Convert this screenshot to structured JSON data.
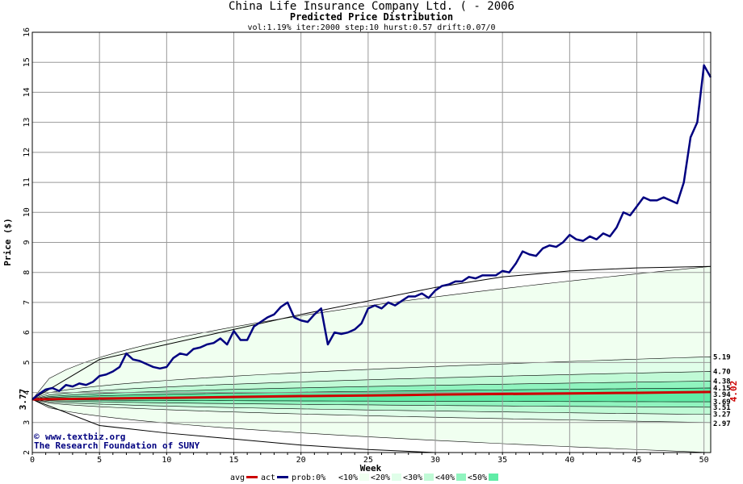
{
  "header": {
    "title": "China Life Insurance Company Ltd. ( - 2006",
    "subtitle": "Predicted Price Distribution",
    "params": "vol:1.19% iter:2000 step:10 hurst:0.57 drift:0.07/0"
  },
  "watermark": {
    "line1": "www.textbiz.org",
    "line2": "The Research Foundation of SUNY",
    "copyright": "©"
  },
  "chart_data": {
    "type": "line",
    "xlabel": "Week",
    "ylabel": "Price ($)",
    "xlim": [
      0,
      50.5
    ],
    "ylim": [
      2,
      16
    ],
    "xticks": [
      0,
      5,
      10,
      15,
      20,
      25,
      30,
      35,
      40,
      45,
      50
    ],
    "yticks": [
      2,
      3,
      4,
      5,
      6,
      7,
      8,
      9,
      10,
      11,
      12,
      13,
      14,
      15,
      16
    ],
    "grid": true,
    "start_value": "3.77",
    "start_price": 3.77,
    "end_value": "4.02",
    "end_price": 4.02,
    "percentile_labels": [
      "5.19",
      "4.70",
      "4.38",
      "4.15",
      "3.94",
      "3.69",
      "3.51",
      "3.27",
      "2.97"
    ],
    "bands": [
      {
        "name": "<10%",
        "upper": 8.2,
        "lower": 2.0,
        "color": "#f0fff0"
      },
      {
        "name": "<20%",
        "upper": 5.19,
        "lower": 3.0,
        "color": "#e0fee9"
      },
      {
        "name": "<30%",
        "upper": 4.7,
        "lower": 3.27,
        "color": "#c0fad6"
      },
      {
        "name": "<40%",
        "upper": 4.38,
        "lower": 3.51,
        "color": "#90f4bf"
      },
      {
        "name": "<50%",
        "upper": 4.15,
        "lower": 3.69,
        "color": "#60eca6"
      }
    ],
    "avg_series": {
      "name": "avg",
      "color": "#cc0000",
      "x": [
        0,
        5,
        10,
        15,
        20,
        25,
        30,
        35,
        40,
        45,
        50.5
      ],
      "y": [
        3.77,
        3.8,
        3.82,
        3.85,
        3.88,
        3.9,
        3.93,
        3.95,
        3.97,
        3.99,
        4.02
      ]
    },
    "act_series": {
      "name": "act",
      "color": "#000080",
      "x": [
        0,
        0.5,
        1,
        1.5,
        2,
        2.5,
        3,
        3.5,
        4,
        4.5,
        5,
        5.5,
        6,
        6.5,
        7,
        7.5,
        8,
        8.5,
        9,
        9.5,
        10,
        10.5,
        11,
        11.5,
        12,
        12.5,
        13,
        13.5,
        14,
        14.5,
        15,
        15.5,
        16,
        16.5,
        17,
        17.5,
        18,
        18.5,
        19,
        19.5,
        20,
        20.5,
        21,
        21.5,
        22,
        22.5,
        23,
        23.5,
        24,
        24.5,
        25,
        25.5,
        26,
        26.5,
        27,
        27.5,
        28,
        28.5,
        29,
        29.5,
        30,
        30.5,
        31,
        31.5,
        32,
        32.5,
        33,
        33.5,
        34,
        34.5,
        35,
        35.5,
        36,
        36.5,
        37,
        37.5,
        38,
        38.5,
        39,
        39.5,
        40,
        40.5,
        41,
        41.5,
        42,
        42.5,
        43,
        43.5,
        44,
        44.5,
        45,
        45.5,
        46,
        46.5,
        47,
        47.5,
        48,
        48.5,
        49,
        49.5,
        50,
        50.5
      ],
      "y": [
        3.77,
        3.95,
        4.1,
        4.15,
        4.05,
        4.25,
        4.2,
        4.3,
        4.25,
        4.35,
        4.55,
        4.6,
        4.7,
        4.85,
        5.3,
        5.1,
        5.05,
        4.95,
        4.85,
        4.8,
        4.85,
        5.15,
        5.3,
        5.25,
        5.45,
        5.5,
        5.6,
        5.65,
        5.8,
        5.6,
        6.05,
        5.75,
        5.75,
        6.2,
        6.35,
        6.5,
        6.6,
        6.85,
        7.0,
        6.5,
        6.4,
        6.35,
        6.6,
        6.8,
        5.6,
        6.0,
        5.95,
        6.0,
        6.1,
        6.3,
        6.8,
        6.9,
        6.8,
        7.0,
        6.9,
        7.05,
        7.2,
        7.2,
        7.3,
        7.15,
        7.4,
        7.55,
        7.6,
        7.7,
        7.7,
        7.85,
        7.8,
        7.9,
        7.9,
        7.9,
        8.05,
        8.0,
        8.3,
        8.7,
        8.6,
        8.55,
        8.8,
        8.9,
        8.85,
        9.0,
        9.25,
        9.1,
        9.05,
        9.2,
        9.1,
        9.3,
        9.2,
        9.5,
        10.0,
        9.9,
        10.2,
        10.5,
        10.4,
        10.4,
        10.5,
        10.4,
        10.3,
        11.0,
        12.5,
        13.0,
        14.9,
        14.5
      ]
    },
    "upper_envelope": {
      "x": [
        0,
        5,
        10,
        15,
        20,
        25,
        30,
        35,
        40,
        45,
        50.5
      ],
      "y": [
        3.77,
        5.1,
        5.6,
        6.1,
        6.6,
        7.05,
        7.5,
        7.85,
        8.05,
        8.15,
        8.2
      ]
    },
    "lower_envelope": {
      "x": [
        0,
        5,
        10,
        15,
        20,
        25,
        30
      ],
      "y": [
        3.77,
        2.9,
        2.65,
        2.45,
        2.25,
        2.1,
        2.0
      ]
    }
  },
  "legend": {
    "items": [
      {
        "label": "avg",
        "color": "#cc0000",
        "type": "line"
      },
      {
        "label": "act",
        "color": "#000080",
        "type": "line"
      },
      {
        "label": "prob:0%",
        "color": "#ffffff",
        "type": "box"
      },
      {
        "label": "<10%",
        "color": "#f0fff0",
        "type": "box"
      },
      {
        "label": "<20%",
        "color": "#e0fee9",
        "type": "box"
      },
      {
        "label": "<30%",
        "color": "#c0fad6",
        "type": "box"
      },
      {
        "label": "<40%",
        "color": "#90f4bf",
        "type": "box"
      },
      {
        "label": "<50%",
        "color": "#60eca6",
        "type": "box"
      }
    ]
  }
}
